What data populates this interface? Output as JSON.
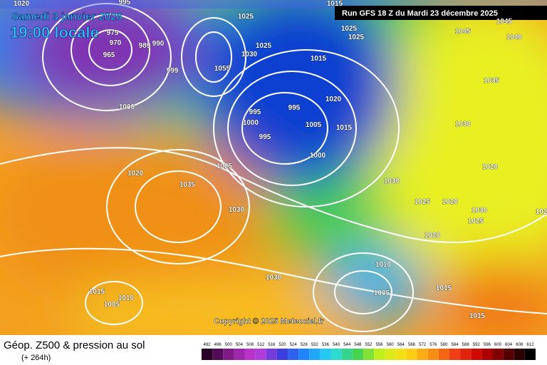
{
  "header": {
    "date": "Samedi 3 janvier 2026",
    "time": "19:00 locale",
    "run": "Run GFS 18 Z du Mardi 23 décembre 2025"
  },
  "isobar_labels": [
    "1020",
    "995",
    "1025",
    "1015",
    "975",
    "970",
    "965",
    "989",
    "990",
    "1025",
    "1025",
    "1045",
    "1045",
    "1040",
    "1025",
    "1030",
    "1015",
    "1055",
    "999",
    "1000",
    "995",
    "1000",
    "995",
    "1020",
    "1035",
    "995",
    "1005",
    "1015",
    "1030",
    "1000",
    "1025",
    "1020",
    "1020",
    "1035",
    "1030",
    "1025",
    "1020",
    "1030",
    "1030",
    "1025",
    "102",
    "1020",
    "1010",
    "1030",
    "1015",
    "1010",
    "1005",
    "1005",
    "1015",
    "1015"
  ],
  "copyright": "Copyright © 2025 Meteociel.fr",
  "footer": {
    "title": "Géop. Z500 & pression au sol",
    "lead": "(+ 264h)"
  },
  "legend": {
    "values": [
      492,
      496,
      500,
      504,
      508,
      512,
      516,
      520,
      524,
      528,
      532,
      536,
      540,
      544,
      548,
      552,
      556,
      560,
      564,
      568,
      572,
      576,
      580,
      584,
      588,
      592,
      596,
      600,
      604,
      608,
      612
    ]
  }
}
